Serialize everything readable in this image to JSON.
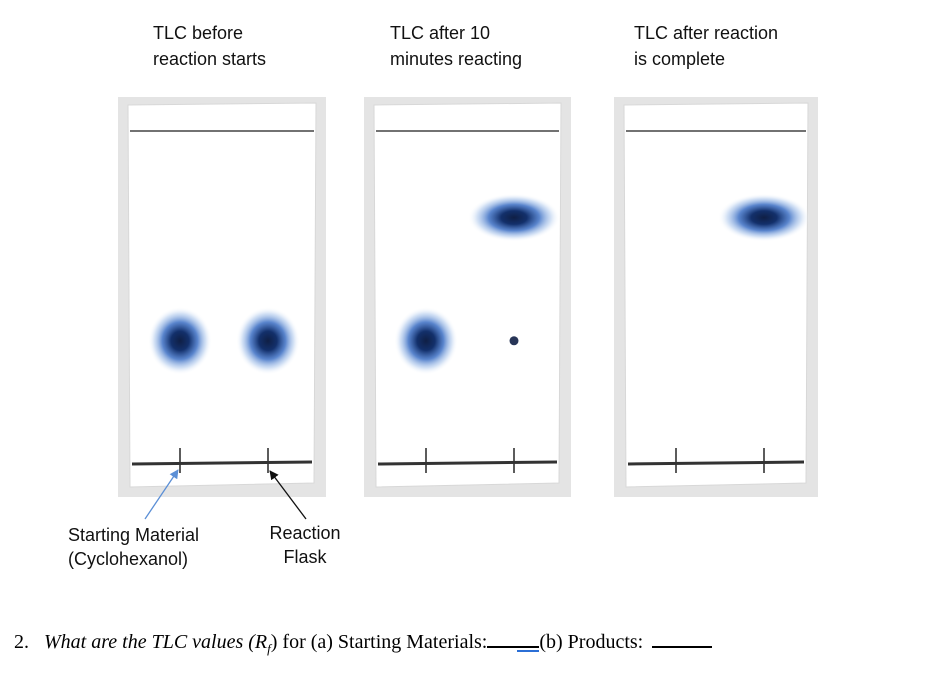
{
  "plates": [
    {
      "heading": "TLC before\nreaction starts",
      "spots": [
        {
          "lane": "starting_material",
          "rf": 0.37,
          "size": "large"
        },
        {
          "lane": "reaction_flask",
          "rf": 0.37,
          "size": "large"
        }
      ]
    },
    {
      "heading": "TLC after 10\nminutes reacting",
      "spots": [
        {
          "lane": "starting_material",
          "rf": 0.37,
          "size": "large"
        },
        {
          "lane": "reaction_flask",
          "rf": 0.37,
          "size": "small"
        },
        {
          "lane": "reaction_flask",
          "rf": 0.74,
          "size": "large"
        }
      ]
    },
    {
      "heading": "TLC after reaction\nis complete",
      "spots": [
        {
          "lane": "reaction_flask",
          "rf": 0.74,
          "size": "large"
        }
      ]
    }
  ],
  "annotations": {
    "starting_material": "Starting Material\n(Cyclohexanol)",
    "reaction_flask": "Reaction\nFlask"
  },
  "question": {
    "number": "2.",
    "text_italic": "What are the TLC values (R",
    "subscript": "f",
    "text_after": ") for (a) Starting Materials:",
    "part_b": "(b) Products:"
  },
  "colors": {
    "spot_core": "#0f1f45",
    "spot_halo": "#3c6fc4",
    "plate_frame": "#e4e4e4",
    "arrow_blue": "#5b8fd6"
  }
}
